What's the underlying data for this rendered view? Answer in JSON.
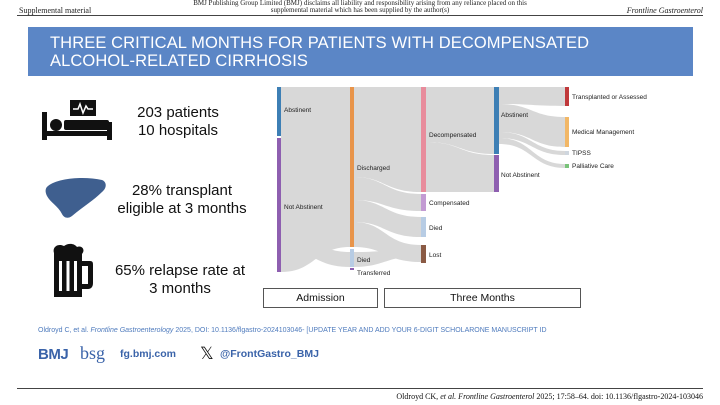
{
  "header": {
    "left": "Supplemental material",
    "middle": "BMJ Publishing Group Limited (BMJ) disclaims all liability and responsibility arising from any reliance placed on this supplemental material which has been supplied by the author(s)",
    "right": "Frontline Gastroenterol"
  },
  "banner": {
    "title": "THREE CRITICAL MONTHS FOR PATIENTS WITH DECOMPENSATED\nALCOHOL-RELATED CIRRHOSIS",
    "color": "#5b86c6"
  },
  "stats": [
    {
      "icon": "hospital-bed-icon",
      "text": "203 patients\n10 hospitals"
    },
    {
      "icon": "liver-icon",
      "text": "28% transplant\neligible at 3 months"
    },
    {
      "icon": "beer-mug-icon",
      "text": "65% relapse rate at\n3 months"
    }
  ],
  "sankey": {
    "nodes": {
      "abstinent1": "Abstinent",
      "not_abstinent1": "Not Abstinent",
      "discharged": "Discharged",
      "died1": "Died",
      "transferred": "Transferred",
      "decompensated": "Decompensated",
      "compensated": "Compensated",
      "died2": "Died",
      "lost": "Lost",
      "abstinent2": "Abstinent",
      "not_abstinent2": "Not Abstinent",
      "transplanted": "Transplanted or Assessed",
      "medical": "Medical Management",
      "tipss": "TIPSS",
      "palliative": "Palliative Care"
    },
    "colors": {
      "abstinent": "#3d7fb5",
      "not_abstinent": "#8e5fb0",
      "discharged": "#e8944a",
      "died": "#b7cce4",
      "decompensated": "#e88c9c",
      "compensated": "#c39bd3",
      "lost": "#8a5a44",
      "transplanted": "#c0393b",
      "medical": "#f2b766",
      "tipss": "#cfd6de",
      "palliative": "#79c37a",
      "flow": "#d4d4d4"
    },
    "stages": {
      "admission": "Admission",
      "three_months": "Three Months"
    }
  },
  "citation": {
    "authors": "Oldroyd C, et al. ",
    "journal": "Frontline Gastroenterology",
    "rest": " 2025, DOI: 10.1136/flgastro-2024103046- [UPDATE YEAR AND ADD YOUR 6-DIGIT SCHOLARONE MANUSCRIPT ID"
  },
  "branding": {
    "bmj": "BMJ",
    "bsg": "bsg",
    "website": "fg.bmj.com",
    "x_symbol": "𝕏",
    "handle": "@FrontGastro_BMJ"
  },
  "footer": {
    "authors": "Oldroyd CK, ",
    "journal": "et al. Frontline Gastroenterol",
    "rest": " 2025; 17:58–64. doi: 10.1136/flgastro-2024-103046"
  }
}
